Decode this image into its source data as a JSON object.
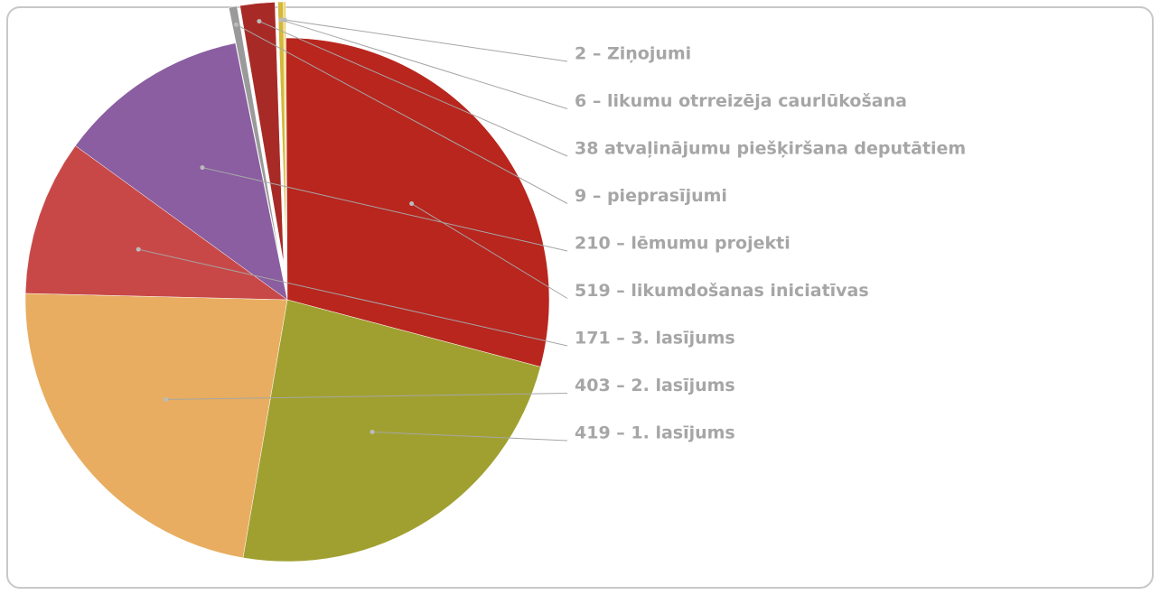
{
  "chart_data": {
    "type": "pie",
    "values": [
      2,
      6,
      38,
      9,
      210,
      519,
      171,
      403,
      419
    ],
    "value_labels": [
      "2 – Ziņojumi",
      "6 – likumu otrreizēja caurlūkošana",
      "38 atvaļinājumu piešķiršana deputātiem",
      "9 – pieprasījumi",
      "210 – lēmumu projekti",
      "519 – likumdošanas iniciatīvas",
      "171 – 3. lasījums",
      "403 – 2. lasījums",
      "419 – 1. lasījums"
    ],
    "colors": [
      "#e8c84a",
      "#d4b83a",
      "#a82a26",
      "#9a9a9a",
      "#8a5ea0",
      "#b8261e",
      "#c84848",
      "#e8ad60",
      "#a0a030"
    ]
  }
}
